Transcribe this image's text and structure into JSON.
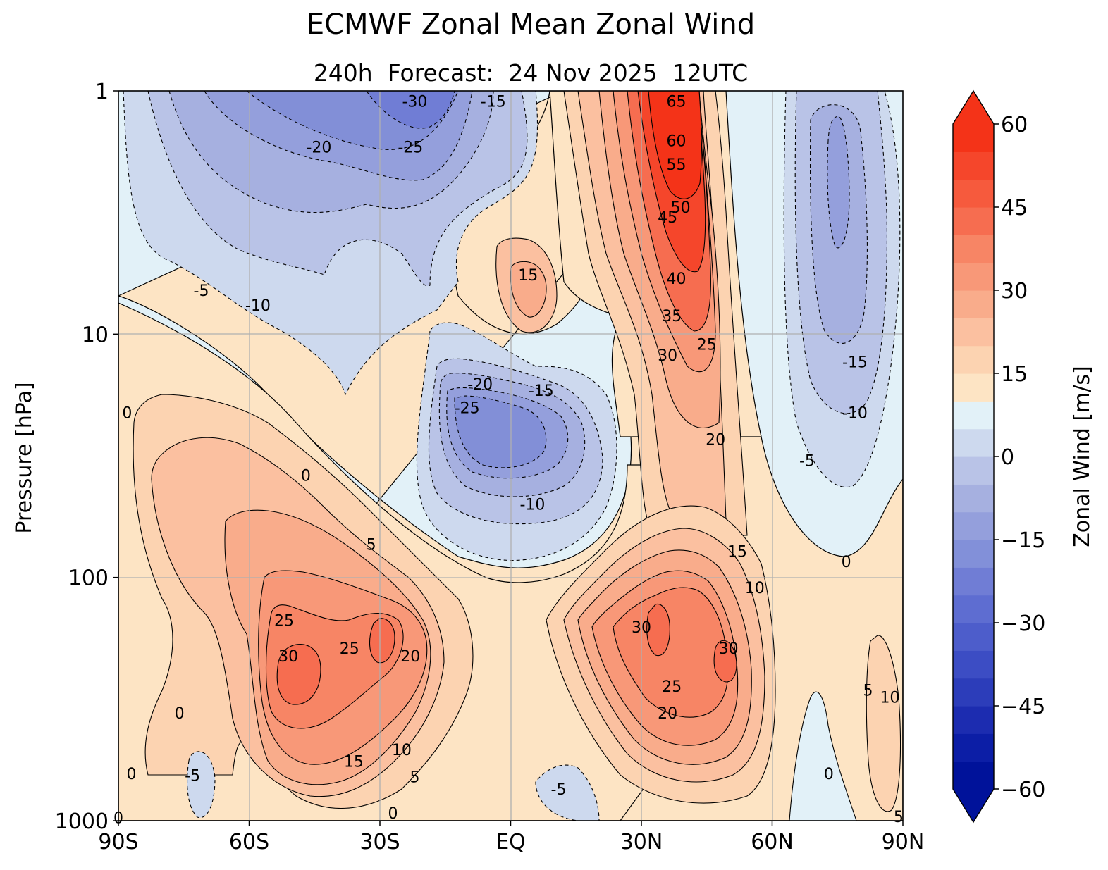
{
  "chart_data": {
    "type": "contour",
    "title": "ECMWF Zonal Mean Zonal Wind",
    "subtitle": "240h  Forecast:  24 Nov 2025  12UTC",
    "xlabel": "",
    "ylabel": "Pressure [hPa]",
    "x_ticks": [
      "90S",
      "60S",
      "30S",
      "EQ",
      "30N",
      "60N",
      "90N"
    ],
    "y_ticks": [
      "1",
      "10",
      "100",
      "1000"
    ],
    "xlim": [
      -90,
      90
    ],
    "ylim_hpa": [
      1000,
      1
    ],
    "y_scale": "log",
    "grid": true,
    "colorbar": {
      "label": "Zonal Wind [m/s]",
      "ticks": [
        "60",
        "45",
        "30",
        "15",
        "0",
        "−15",
        "−30",
        "−45",
        "−60"
      ],
      "range": [
        -60,
        60
      ],
      "step": 5,
      "extend": "both",
      "colors_low_to_high": [
        "#00129a",
        "#0c1ea6",
        "#1c2cb0",
        "#2c3dba",
        "#3c4dc4",
        "#4d5dcb",
        "#5e6dd1",
        "#707dd5",
        "#8290d9",
        "#949fdc",
        "#a6b0e0",
        "#b9c3e7",
        "#cdd9ee",
        "#e2f1f8",
        "#fde4c4",
        "#fcd3b1",
        "#fbc0a0",
        "#f9ac8b",
        "#f89878",
        "#f78565",
        "#f66d50",
        "#f65a3d",
        "#f5462b",
        "#f43318"
      ]
    },
    "contour_labels": [
      {
        "text": "-30",
        "lat": -22,
        "p": 1.1
      },
      {
        "text": "-15",
        "lat": -4,
        "p": 1.1
      },
      {
        "text": "-20",
        "lat": -44,
        "p": 1.7
      },
      {
        "text": "-25",
        "lat": -23,
        "p": 1.7
      },
      {
        "text": "-5",
        "lat": -71,
        "p": 6.6
      },
      {
        "text": "-10",
        "lat": -58,
        "p": 7.6
      },
      {
        "text": "15",
        "lat": 4,
        "p": 5.7
      },
      {
        "text": "65",
        "lat": 38,
        "p": 1.1
      },
      {
        "text": "60",
        "lat": 38,
        "p": 1.6
      },
      {
        "text": "55",
        "lat": 38,
        "p": 2.0
      },
      {
        "text": "50",
        "lat": 39,
        "p": 3.0
      },
      {
        "text": "45",
        "lat": 36,
        "p": 3.3
      },
      {
        "text": "40",
        "lat": 38,
        "p": 5.9
      },
      {
        "text": "35",
        "lat": 37,
        "p": 8.4
      },
      {
        "text": "30",
        "lat": 36,
        "p": 12.2
      },
      {
        "text": "25",
        "lat": 45,
        "p": 11.0
      },
      {
        "text": "20",
        "lat": 47,
        "p": 27.0
      },
      {
        "text": "-20",
        "lat": -7,
        "p": 16.0
      },
      {
        "text": "-25",
        "lat": -10,
        "p": 20.0
      },
      {
        "text": "-15",
        "lat": 7,
        "p": 17.0
      },
      {
        "text": "-10",
        "lat": 5,
        "p": 50.0
      },
      {
        "text": "-15",
        "lat": 79,
        "p": 13.0
      },
      {
        "text": "-10",
        "lat": 79,
        "p": 21.0
      },
      {
        "text": "-5",
        "lat": 68,
        "p": 33.0
      },
      {
        "text": "0",
        "lat": 77,
        "p": 86.0
      },
      {
        "text": "0",
        "lat": -88,
        "p": 21.0
      },
      {
        "text": "0",
        "lat": -47,
        "p": 38.0
      },
      {
        "text": "5",
        "lat": -32,
        "p": 73.0
      },
      {
        "text": "15",
        "lat": 52,
        "p": 78.0
      },
      {
        "text": "10",
        "lat": 56,
        "p": 110.0
      },
      {
        "text": "25",
        "lat": -52,
        "p": 150.0
      },
      {
        "text": "30",
        "lat": -51,
        "p": 210.0
      },
      {
        "text": "25",
        "lat": -37,
        "p": 195.0
      },
      {
        "text": "20",
        "lat": -23,
        "p": 210.0
      },
      {
        "text": "30",
        "lat": 30,
        "p": 160.0
      },
      {
        "text": "30",
        "lat": 50,
        "p": 195.0
      },
      {
        "text": "25",
        "lat": 37,
        "p": 280.0
      },
      {
        "text": "20",
        "lat": 36,
        "p": 360.0
      },
      {
        "text": "5",
        "lat": 82,
        "p": 290.0
      },
      {
        "text": "10",
        "lat": 87,
        "p": 310.0
      },
      {
        "text": "0",
        "lat": -76,
        "p": 360.0
      },
      {
        "text": "15",
        "lat": -36,
        "p": 570.0
      },
      {
        "text": "10",
        "lat": -25,
        "p": 510.0
      },
      {
        "text": "5",
        "lat": -22,
        "p": 660.0
      },
      {
        "text": "-5",
        "lat": -73,
        "p": 650.0
      },
      {
        "text": "0",
        "lat": -87,
        "p": 640.0
      },
      {
        "text": "-5",
        "lat": 11,
        "p": 740.0
      },
      {
        "text": "0",
        "lat": -27,
        "p": 930.0
      },
      {
        "text": "0",
        "lat": 73,
        "p": 640.0
      },
      {
        "text": "0",
        "lat": -90,
        "p": 970.0
      },
      {
        "text": "5",
        "lat": 89,
        "p": 960.0
      }
    ]
  }
}
